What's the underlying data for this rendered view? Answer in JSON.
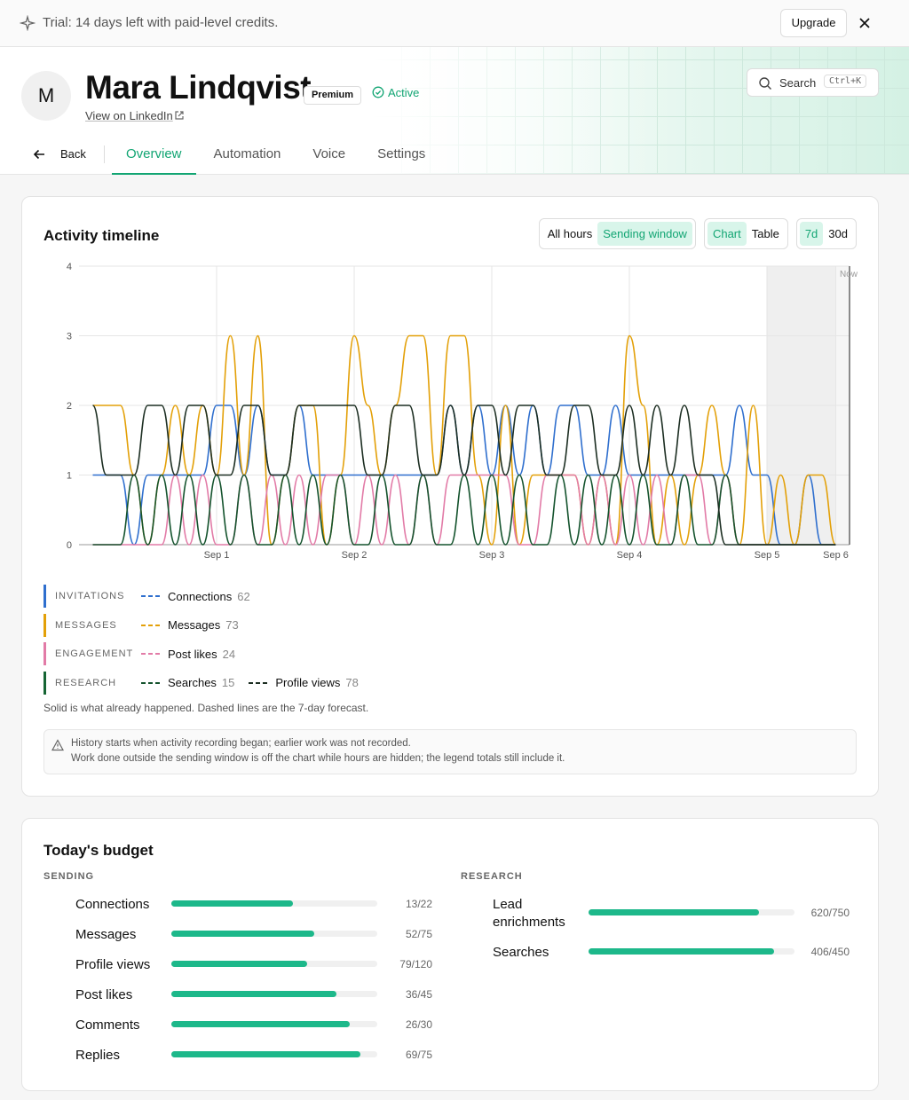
{
  "trial": {
    "text": "Trial: 14 days left with paid-level credits.",
    "upgrade": "Upgrade"
  },
  "profile": {
    "initial": "M",
    "name": "Mara Lindqvist",
    "badge": "Premium",
    "status": "Active",
    "link": "View on LinkedIn",
    "search": "Search",
    "shortcut": "Ctrl+K"
  },
  "tabs": {
    "back": "Back",
    "items": [
      "Overview",
      "Automation",
      "Voice",
      "Settings"
    ],
    "active": 0
  },
  "chart_data": {
    "type": "line",
    "title": "Activity timeline",
    "toggles": [
      {
        "options": [
          "All hours",
          "Sending window"
        ],
        "active": 1
      },
      {
        "options": [
          "Chart",
          "Table"
        ],
        "active": 0
      },
      {
        "options": [
          "7d",
          "30d"
        ],
        "active": 0
      }
    ],
    "categories": [
      null,
      null,
      null,
      null,
      null,
      null,
      null,
      null,
      null,
      "Sep 1",
      null,
      null,
      null,
      null,
      null,
      null,
      null,
      null,
      null,
      "Sep 2",
      null,
      null,
      null,
      null,
      null,
      null,
      null,
      null,
      null,
      "Sep 3",
      null,
      null,
      null,
      null,
      null,
      null,
      null,
      null,
      null,
      "Sep 4",
      null,
      null,
      null,
      null,
      null,
      null,
      null,
      null,
      null,
      "Sep 5",
      null,
      null,
      null,
      null,
      "Sep 6"
    ],
    "ylim": [
      0,
      4
    ],
    "yticks": [
      0,
      1,
      2,
      3,
      4
    ],
    "grid": true,
    "now_label": "Now",
    "groups": [
      {
        "label": "INVITATIONS",
        "color": "#2f6fce",
        "series": [
          {
            "name": "Connections",
            "color": "#2f6fce",
            "total": 62,
            "values": [
              1,
              1,
              1,
              0,
              1,
              1,
              1,
              1,
              1,
              2,
              2,
              1,
              2,
              1,
              1,
              2,
              1,
              1,
              1,
              1,
              1,
              1,
              1,
              1,
              1,
              1,
              2,
              1,
              2,
              1,
              2,
              1,
              2,
              1,
              2,
              2,
              1,
              1,
              2,
              1,
              1,
              1,
              1,
              1,
              1,
              1,
              1,
              2,
              1,
              1,
              0,
              0,
              1,
              0,
              0
            ]
          }
        ]
      },
      {
        "label": "MESSAGES",
        "color": "#e3a008",
        "series": [
          {
            "name": "Messages",
            "color": "#e3a008",
            "total": 73,
            "values": [
              2,
              2,
              2,
              1,
              0,
              1,
              2,
              1,
              2,
              1,
              3,
              1,
              3,
              0,
              1,
              2,
              2,
              0,
              1,
              3,
              2,
              1,
              2,
              3,
              3,
              1,
              3,
              3,
              1,
              0,
              2,
              0,
              1,
              1,
              1,
              1,
              0,
              1,
              0,
              3,
              2,
              0,
              1,
              0,
              1,
              2,
              1,
              0,
              2,
              0,
              1,
              0,
              1,
              1,
              0
            ]
          }
        ]
      },
      {
        "label": "ENGAGEMENT",
        "color": "#e27ba7",
        "series": [
          {
            "name": "Post likes",
            "color": "#e27ba7",
            "total": 24,
            "values": [
              0,
              0,
              0,
              0,
              0,
              0,
              1,
              0,
              1,
              0,
              0,
              1,
              0,
              1,
              0,
              1,
              0,
              1,
              1,
              0,
              1,
              0,
              1,
              0,
              1,
              0,
              1,
              1,
              1,
              1,
              1,
              0,
              0,
              1,
              1,
              1,
              0,
              1,
              0,
              1,
              0,
              1,
              0,
              1,
              1,
              0,
              1,
              0,
              0,
              0,
              0,
              0,
              0,
              0,
              0
            ]
          }
        ]
      },
      {
        "label": "RESEARCH",
        "color": "#166534",
        "series": [
          {
            "name": "Searches",
            "color": "#14532d",
            "total": 15,
            "values": [
              0,
              0,
              0,
              1,
              0,
              1,
              0,
              1,
              0,
              1,
              0,
              1,
              0,
              0,
              1,
              0,
              1,
              0,
              1,
              0,
              0,
              1,
              0,
              0,
              1,
              0,
              0,
              1,
              0,
              1,
              0,
              1,
              0,
              0,
              1,
              0,
              1,
              0,
              1,
              0,
              1,
              0,
              0,
              1,
              0,
              0,
              1,
              0,
              0,
              0,
              0,
              0,
              0,
              0,
              0
            ]
          },
          {
            "name": "Profile views",
            "color": "#1c2e22",
            "total": 78,
            "values": [
              2,
              1,
              1,
              1,
              2,
              2,
              1,
              2,
              2,
              1,
              1,
              2,
              2,
              1,
              1,
              2,
              2,
              2,
              2,
              2,
              1,
              1,
              2,
              2,
              1,
              1,
              2,
              1,
              2,
              2,
              1,
              2,
              2,
              1,
              1,
              2,
              2,
              1,
              1,
              2,
              1,
              2,
              1,
              2,
              1,
              1,
              0,
              0,
              0,
              0,
              0,
              0,
              0,
              0,
              0
            ]
          }
        ]
      }
    ],
    "footnote": "Solid is what already happened. Dashed lines are the 7-day forecast.",
    "notice": [
      "History starts when activity recording began; earlier work was not recorded.",
      "Work done outside the sending window is off the chart while hours are hidden; the legend totals still include it."
    ]
  },
  "budget": {
    "title": "Today's budget",
    "columns": [
      {
        "label": "SENDING",
        "items": [
          {
            "name": "Connections",
            "used": 13,
            "limit": 22,
            "label": "13/22"
          },
          {
            "name": "Messages",
            "used": 52,
            "limit": 75,
            "label": "52/75"
          },
          {
            "name": "Profile views",
            "used": 79,
            "limit": 120,
            "label": "79/120"
          },
          {
            "name": "Post likes",
            "used": 36,
            "limit": 45,
            "label": "36/45"
          },
          {
            "name": "Comments",
            "used": 26,
            "limit": 30,
            "label": "26/30"
          },
          {
            "name": "Replies",
            "used": 69,
            "limit": 75,
            "label": "69/75"
          }
        ]
      },
      {
        "label": "RESEARCH",
        "items": [
          {
            "name": "Lead enrichments",
            "used": 620,
            "limit": 750,
            "label": "620/750"
          },
          {
            "name": "Searches",
            "used": 406,
            "limit": 450,
            "label": "406/450"
          }
        ]
      }
    ]
  }
}
